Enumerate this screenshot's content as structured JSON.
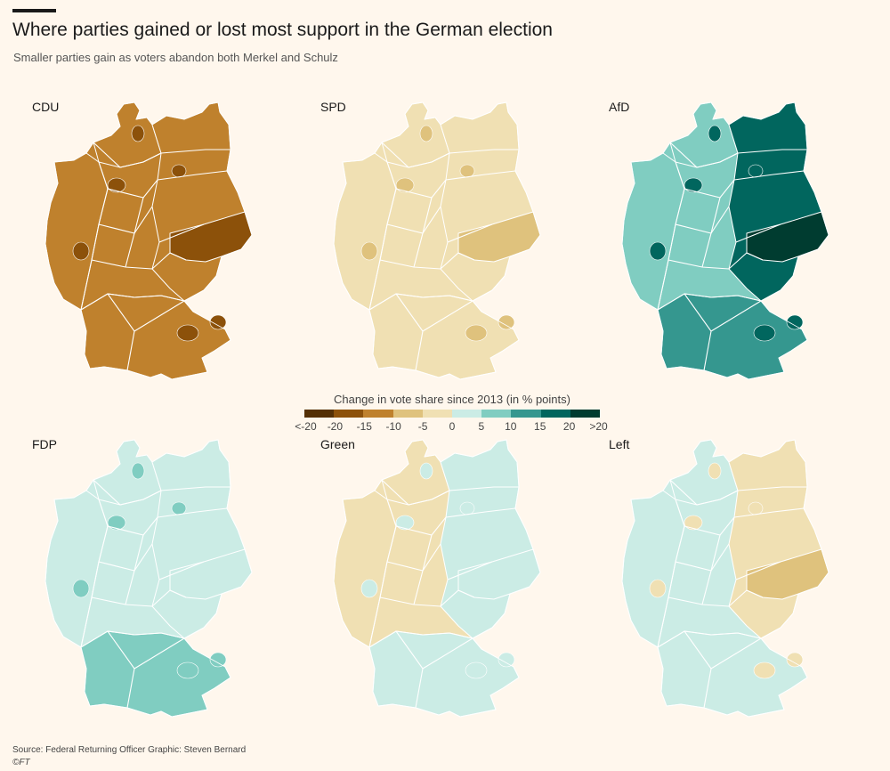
{
  "header": {
    "title": "Where parties gained or lost most support in the German election",
    "subtitle": "Smaller parties gain as voters abandon both Merkel and Schulz"
  },
  "colors": {
    "background": "#fff7ed",
    "scale": [
      "#543005",
      "#8c510a",
      "#bf812d",
      "#dfc27d",
      "#f0e0b3",
      "#cbece5",
      "#80cdc1",
      "#35978f",
      "#01665e",
      "#003c30"
    ],
    "border": "#ffffff"
  },
  "legend": {
    "title": "Change in vote share since 2013 (in % points)",
    "ticks": [
      "<-20",
      "-20",
      "-15",
      "-10",
      "-5",
      "0",
      "5",
      "10",
      "15",
      "20",
      ">20"
    ]
  },
  "maps": [
    {
      "party": "CDU",
      "base": 2,
      "dark_east": 1,
      "south_shade": 2,
      "spots": 1
    },
    {
      "party": "SPD",
      "base": 4,
      "dark_east": 3,
      "south_shade": 4,
      "spots": 3
    },
    {
      "party": "AfD",
      "base": 6,
      "dark_east": 9,
      "south_shade": 7,
      "spots": 8
    },
    {
      "party": "FDP",
      "base": 5,
      "dark_east": 5,
      "south_shade": 6,
      "spots": 6
    },
    {
      "party": "Green",
      "base": 4,
      "dark_east": 5,
      "south_shade": 5,
      "spots": 5
    },
    {
      "party": "Left",
      "base": 5,
      "dark_east": 3,
      "south_shade": 5,
      "spots": 4
    }
  ],
  "footer": {
    "source": "Source: Federal Returning Officer  Graphic: Steven Bernard",
    "copyright": "©FT"
  }
}
